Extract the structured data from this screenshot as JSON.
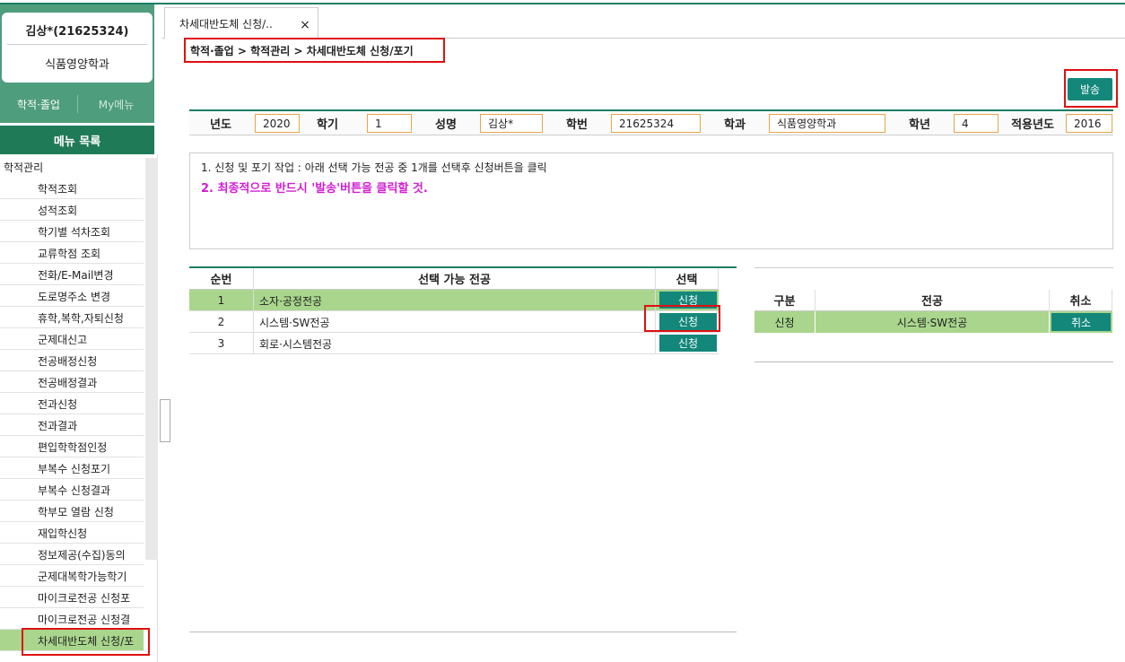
{
  "user": {
    "name": "김상*(21625324)",
    "dept": "식품영양학과"
  },
  "nav_tabs": [
    "학적·졸업",
    "My메뉴"
  ],
  "menu_title": "메뉴 목록",
  "menu_group": "학적관리",
  "menu_items": [
    "학적조회",
    "성적조회",
    "학기별 석차조회",
    "교류학점 조회",
    "전화/E-Mail변경",
    "도로명주소 변경",
    "휴학,복학,자퇴신청",
    "군제대신고",
    "전공배정신청",
    "전공배정결과",
    "전과신청",
    "전과결과",
    "편입학학점인정",
    "부복수 신청포기",
    "부복수 신청결과",
    "학부모 열람 신청",
    "재입학신청",
    "정보제공(수집)동의",
    "군제대복학가능학기",
    "마이크로전공 신청포",
    "마이크로전공 신청결",
    "차세대반도체 신청/포"
  ],
  "tab": {
    "title": "차세대반도체 신청/..",
    "close": "×"
  },
  "breadcrumb": "학적·졸업 > 학적관리 > 차세대반도체 신청/포기",
  "send_button": "발송",
  "info": {
    "labels": [
      "년도",
      "학기",
      "성명",
      "학번",
      "학과",
      "학년",
      "적용년도"
    ],
    "values": [
      "2020",
      "1",
      "김상*",
      "21625324",
      "식품영양학과",
      "4",
      "2016"
    ]
  },
  "notes": [
    "1. 신청 및 포기 작업 : 아래 선택 가능 전공 중 1개를 선택후 신청버튼을 클릭",
    "2. 최종적으로 반드시 '발송'버튼을 클릭할 것."
  ],
  "majors_table": {
    "headers": [
      "순번",
      "선택 가능 전공",
      "선택"
    ],
    "rows": [
      [
        "1",
        "소자·공정전공",
        "신청"
      ],
      [
        "2",
        "시스템·SW전공",
        "신청"
      ],
      [
        "3",
        "회로·시스템전공",
        "신청"
      ]
    ]
  },
  "applied_table": {
    "headers": [
      "구분",
      "전공",
      "취소"
    ],
    "rows": [
      [
        "신청",
        "시스템·SW전공",
        "취소"
      ]
    ]
  }
}
